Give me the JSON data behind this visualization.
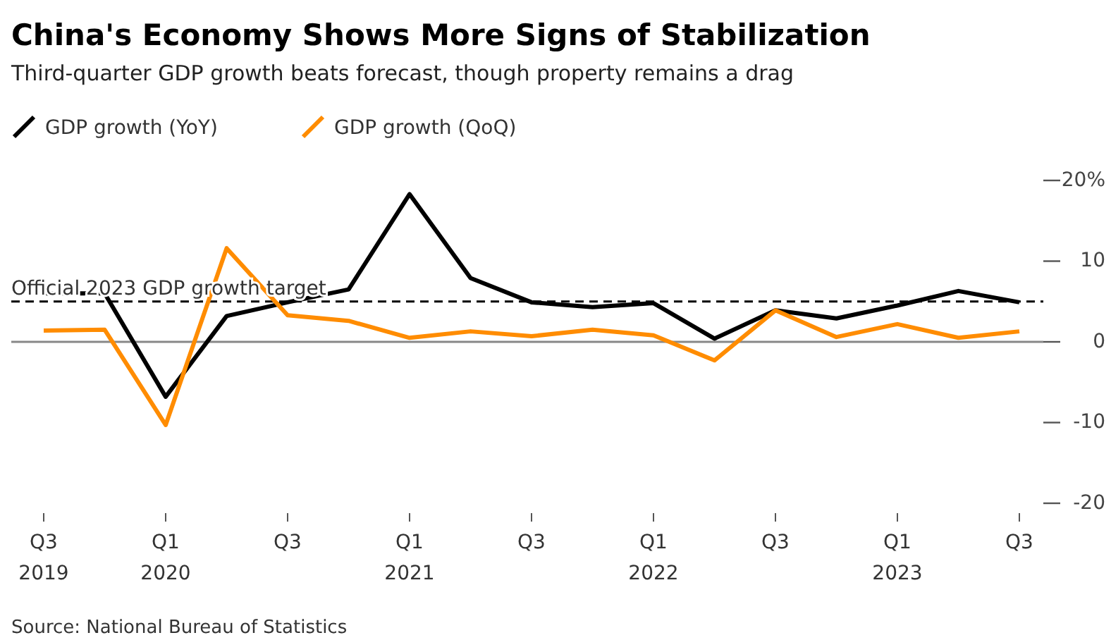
{
  "chart_data": {
    "type": "line",
    "title": "China's Economy Shows More Signs of Stabilization",
    "subtitle": "Third-quarter GDP growth beats forecast, though property remains a drag",
    "categories": [
      "Q3\n2019",
      null,
      "Q1\n2020",
      null,
      "Q3",
      null,
      "Q1\n2021",
      null,
      "Q3",
      null,
      "Q1\n2022",
      null,
      "Q3",
      null,
      "Q1\n2023",
      null,
      "Q3"
    ],
    "series": [
      {
        "name": "GDP growth (YoY)",
        "color": "#000000",
        "values": [
          6.0,
          6.0,
          -6.8,
          3.2,
          4.9,
          6.5,
          18.3,
          7.9,
          4.9,
          4.3,
          4.8,
          0.4,
          3.9,
          2.9,
          4.5,
          6.3,
          4.9
        ]
      },
      {
        "name": "GDP growth (QoQ)",
        "color": "#ff8c00",
        "values": [
          1.4,
          1.5,
          -10.3,
          11.6,
          3.3,
          2.6,
          0.5,
          1.3,
          0.7,
          1.5,
          0.8,
          -2.3,
          3.9,
          0.6,
          2.2,
          0.5,
          1.3
        ]
      }
    ],
    "ylim": [
      -20,
      20
    ],
    "yticks": [
      {
        "value": 20,
        "label": "20%"
      },
      10,
      0,
      -10,
      -20
    ],
    "ref_lines": [
      {
        "axis": "y",
        "value": 5,
        "label": "Official 2023 GDP growth target",
        "color": "#000000",
        "line_style": "dashed"
      },
      {
        "axis": "y",
        "value": 0,
        "label": null,
        "color": "#888888",
        "line_style": "solid"
      }
    ],
    "grid": false,
    "legend": "top left",
    "marker": "none",
    "line_style": "solid",
    "annotations": [
      "Source: National Bureau of Statistics"
    ]
  }
}
